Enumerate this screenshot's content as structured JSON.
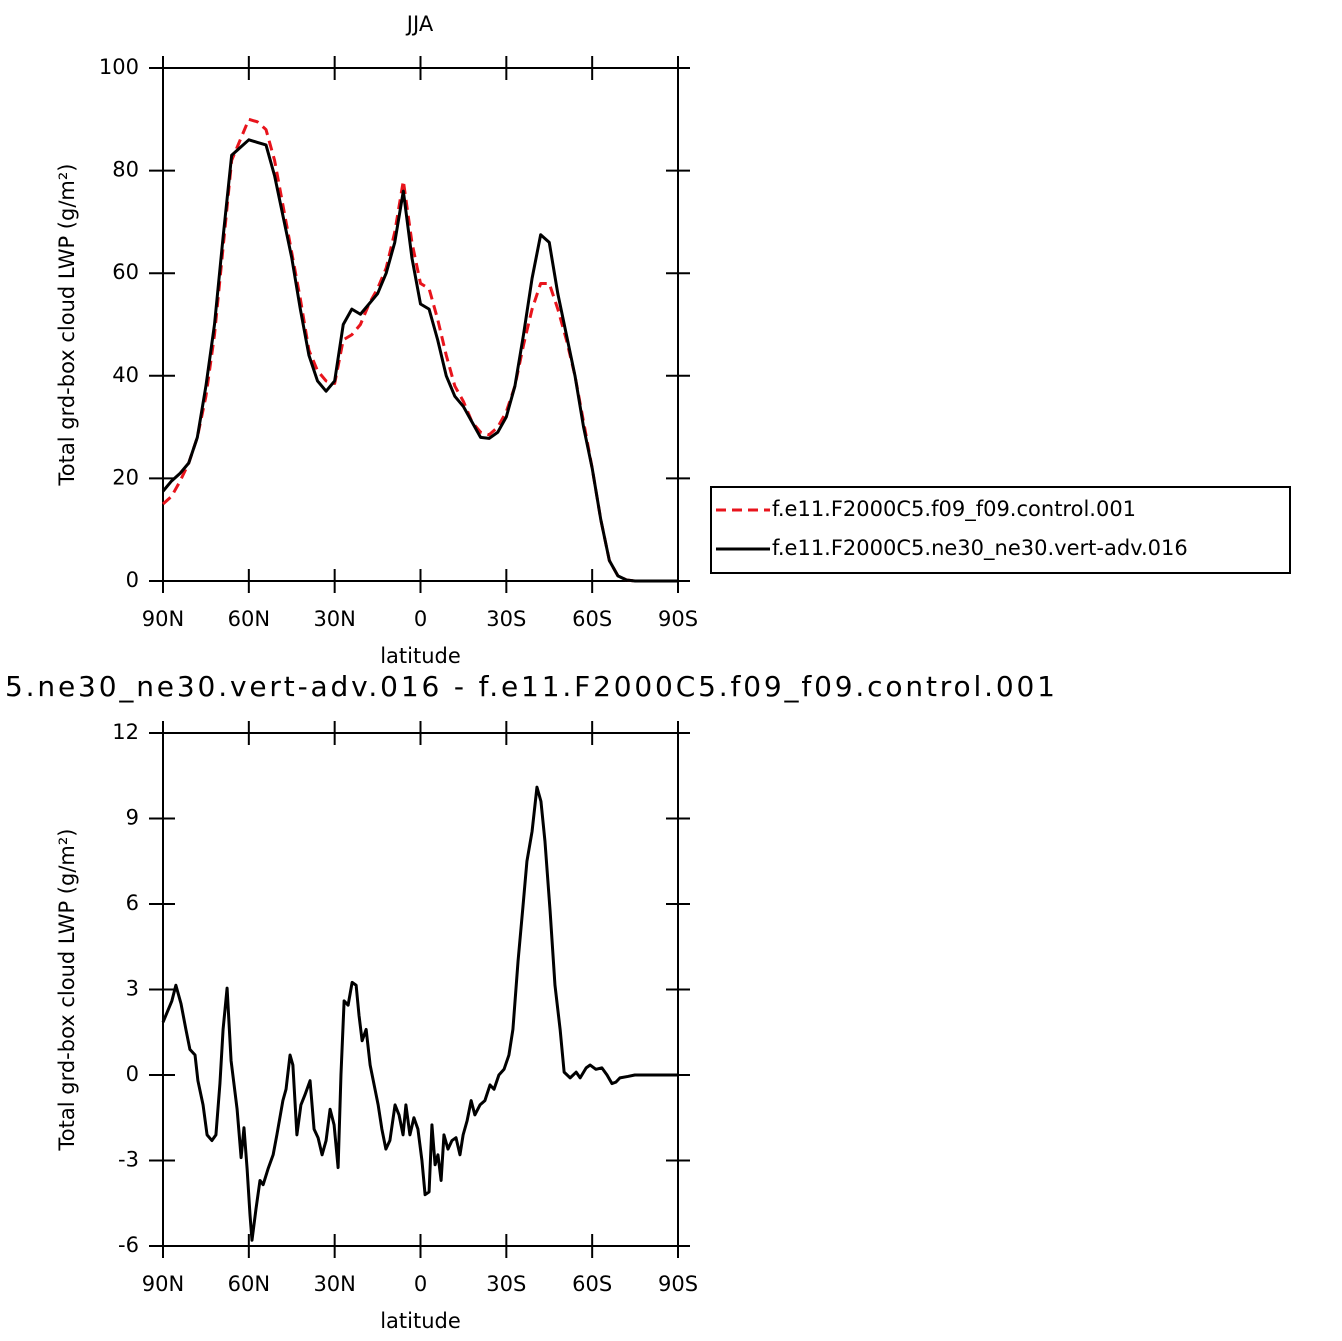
{
  "chart_data": [
    {
      "type": "line",
      "title": "JJA",
      "xlabel": "latitude",
      "ylabel": "Total grd-box cloud LWP (g/m²)",
      "xlim": [
        90,
        -90
      ],
      "xticks": [
        {
          "value": 90,
          "label": "90N"
        },
        {
          "value": 60,
          "label": "60N"
        },
        {
          "value": 30,
          "label": "30N"
        },
        0,
        {
          "value": -30,
          "label": "30S"
        },
        {
          "value": -60,
          "label": "60S"
        },
        {
          "value": -90,
          "label": "90S"
        }
      ],
      "ylim": [
        0,
        100
      ],
      "yticks": [
        0,
        20,
        40,
        60,
        80,
        100
      ],
      "legend": "outside-lower-right",
      "x": [
        90,
        87,
        84,
        81,
        78,
        75,
        72,
        69,
        66,
        63,
        60,
        57,
        54,
        51,
        48,
        45,
        42,
        39,
        36,
        33,
        30,
        27,
        24,
        21,
        18,
        15,
        12,
        9,
        6,
        3,
        0,
        -3,
        -6,
        -9,
        -12,
        -15,
        -18,
        -21,
        -24,
        -27,
        -30,
        -33,
        -36,
        -39,
        -42,
        -45,
        -48,
        -51,
        -54,
        -57,
        -60,
        -63,
        -66,
        -69,
        -72,
        -75,
        -78,
        -81,
        -84,
        -87,
        -90
      ],
      "series": [
        {
          "name": "f.e11.F2000C5.f09_f09.control.001",
          "color": "#e8141c",
          "dash": "dashed",
          "values": [
            15,
            16.5,
            19.5,
            23,
            28,
            36,
            48,
            65,
            82,
            86,
            90,
            89.5,
            88,
            82,
            73,
            64,
            55,
            45,
            41,
            39,
            38.5,
            47,
            48,
            50,
            54,
            57,
            61,
            68,
            78,
            66,
            58,
            57,
            51,
            44,
            38,
            35,
            31,
            29,
            28.5,
            30,
            33,
            38,
            46,
            53,
            58,
            58,
            53,
            47,
            40,
            31,
            22,
            12,
            4,
            1,
            0.2,
            0,
            0,
            0,
            0,
            0,
            0
          ]
        },
        {
          "name": "f.e11.F2000C5.ne30_ne30.vert-adv.016",
          "color": "#000000",
          "dash": "solid",
          "values": [
            17.5,
            19.5,
            21,
            23,
            28,
            38,
            50,
            67,
            83,
            84.5,
            86,
            85.5,
            85,
            79,
            71,
            63,
            53,
            44,
            39,
            37,
            39,
            50,
            53,
            52,
            54,
            56,
            60,
            66,
            76,
            63,
            54,
            53,
            47,
            40,
            36,
            34,
            31,
            28,
            27.8,
            29,
            32,
            38,
            48,
            59,
            67.5,
            66,
            56,
            48,
            40,
            30,
            22,
            12,
            4,
            1,
            0.2,
            0,
            0,
            0,
            0,
            0,
            0
          ]
        }
      ]
    },
    {
      "type": "line",
      "title": "5.ne30_ne30.vert-adv.016 - f.e11.F2000C5.f09_f09.control.001",
      "xlabel": "latitude",
      "ylabel": "Total grd-box cloud LWP (g/m²)",
      "xlim": [
        90,
        -90
      ],
      "xticks": [
        {
          "value": 90,
          "label": "90N"
        },
        {
          "value": 60,
          "label": "60N"
        },
        {
          "value": 30,
          "label": "30N"
        },
        0,
        {
          "value": -30,
          "label": "30S"
        },
        {
          "value": -60,
          "label": "60S"
        },
        {
          "value": -90,
          "label": "90S"
        }
      ],
      "ylim": [
        -6,
        12
      ],
      "yticks": [
        -6,
        -3,
        0,
        3,
        6,
        9,
        12
      ],
      "x": [
        90,
        86.9,
        85.5,
        83.7,
        82,
        80.6,
        78.8,
        77.8,
        76,
        74.6,
        72.9,
        71.5,
        70.1,
        69,
        67.6,
        66.2,
        64.1,
        62.7,
        61.7,
        60.6,
        59.6,
        58.9,
        57.5,
        56.1,
        55,
        53.3,
        51.5,
        50.2,
        48.1,
        47,
        45.6,
        44.6,
        43.2,
        41.8,
        40.4,
        38.6,
        37.2,
        35.8,
        34.4,
        33,
        31.6,
        30.2,
        28.8,
        27.8,
        26.7,
        25.3,
        23.9,
        22.5,
        21.5,
        20.4,
        19,
        17.6,
        15.9,
        14.8,
        13.5,
        12.1,
        10.7,
        8.9,
        7.5,
        6.1,
        5.1,
        3.7,
        2.3,
        0.9,
        -0.5,
        -1.6,
        -3,
        -4,
        -5.1,
        -6.1,
        -7.2,
        -8.2,
        -9.6,
        -11,
        -12.4,
        -13.8,
        -14.9,
        -16.3,
        -17.7,
        -19,
        -20.8,
        -22.5,
        -24.3,
        -25.7,
        -27.4,
        -29.2,
        -30.9,
        -32.3,
        -34.1,
        -35.8,
        -37.2,
        -39,
        -40.7,
        -42.1,
        -43.5,
        -45.3,
        -47,
        -48.8,
        -50.2,
        -52.3,
        -54.4,
        -55.8,
        -57.9,
        -59.3,
        -61.3,
        -63.4,
        -65.2,
        -66.9,
        -68.3,
        -69.7,
        -72.5,
        -74.9,
        -90
      ],
      "series": [
        {
          "color": "#000000",
          "dash": "solid",
          "values": [
            1.85,
            2.6,
            3.15,
            2.5,
            1.6,
            0.9,
            0.7,
            -0.2,
            -1.05,
            -2.1,
            -2.3,
            -2.1,
            -0.3,
            1.6,
            3.05,
            0.5,
            -1.2,
            -2.9,
            -1.85,
            -3.3,
            -4.9,
            -5.8,
            -4.7,
            -3.7,
            -3.85,
            -3.3,
            -2.8,
            -2.1,
            -0.9,
            -0.5,
            0.7,
            0.35,
            -2.1,
            -1.05,
            -0.7,
            -0.2,
            -1.9,
            -2.2,
            -2.8,
            -2.3,
            -1.2,
            -1.75,
            -3.25,
            0,
            2.6,
            2.45,
            3.25,
            3.15,
            2.1,
            1.2,
            1.6,
            0.35,
            -0.5,
            -1.05,
            -1.9,
            -2.6,
            -2.3,
            -1.05,
            -1.4,
            -2.1,
            -1.05,
            -2.1,
            -1.5,
            -1.9,
            -3,
            -4.2,
            -4.1,
            -1.75,
            -3.15,
            -2.8,
            -3.7,
            -2.1,
            -2.6,
            -2.3,
            -2.2,
            -2.8,
            -2.1,
            -1.6,
            -0.9,
            -1.4,
            -1.05,
            -0.9,
            -0.35,
            -0.5,
            0,
            0.2,
            0.7,
            1.6,
            4,
            5.9,
            7.5,
            8.55,
            10.1,
            9.6,
            8.2,
            5.75,
            3.15,
            1.6,
            0.1,
            -0.1,
            0.1,
            -0.1,
            0.25,
            0.35,
            0.2,
            0.25,
            0,
            -0.3,
            -0.25,
            -0.1,
            -0.05,
            0,
            0
          ]
        }
      ]
    }
  ]
}
